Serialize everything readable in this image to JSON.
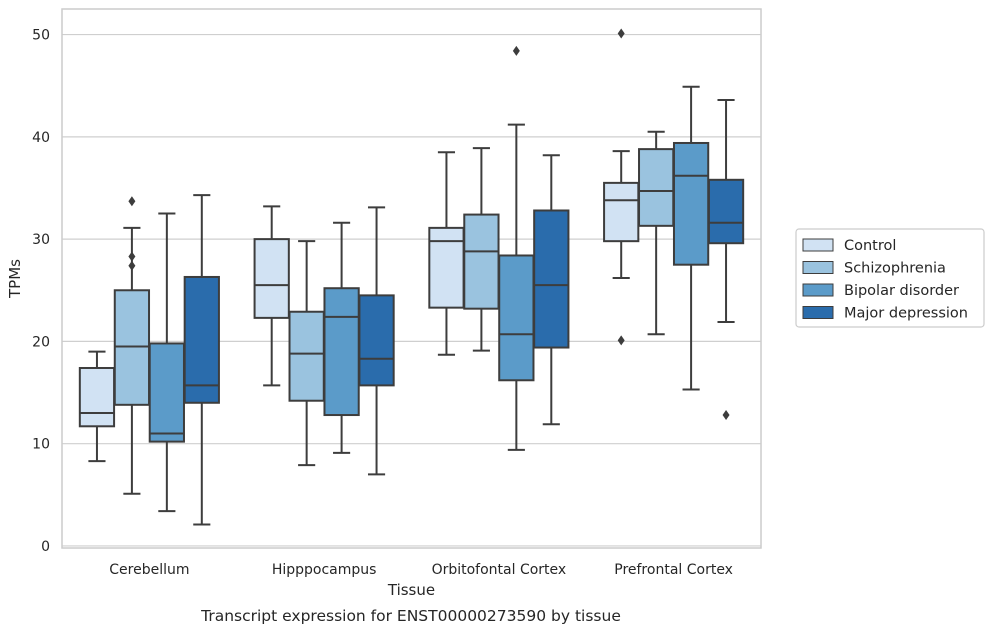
{
  "chart_data": {
    "type": "box",
    "title": "",
    "caption": "Transcript expression for ENST00000273590 by tissue",
    "xlabel": "Tissue",
    "ylabel": "TPMs",
    "ylim": [
      -0.2,
      52.5
    ],
    "yticks": [
      0,
      10,
      20,
      30,
      40,
      50
    ],
    "grid": "horizontal",
    "legend_position": "right",
    "categories": [
      "Cerebellum",
      "Hipppocampus",
      "Orbitofontal Cortex",
      "Prefrontal Cortex"
    ],
    "series": [
      {
        "name": "Control",
        "color": "#d1e2f3",
        "boxes": [
          {
            "whislo": 8.3,
            "q1": 11.7,
            "med": 13.0,
            "q3": 17.4,
            "whishi": 19.0,
            "fliers": []
          },
          {
            "whislo": 15.7,
            "q1": 22.3,
            "med": 25.5,
            "q3": 30.0,
            "whishi": 33.2,
            "fliers": []
          },
          {
            "whislo": 18.7,
            "q1": 23.3,
            "med": 29.8,
            "q3": 31.1,
            "whishi": 38.5,
            "fliers": []
          },
          {
            "whislo": 26.2,
            "q1": 29.8,
            "med": 33.8,
            "q3": 35.5,
            "whishi": 38.6,
            "fliers": [
              20.1,
              50.1
            ]
          }
        ]
      },
      {
        "name": "Schizophrenia",
        "color": "#9ac3df",
        "boxes": [
          {
            "whislo": 5.1,
            "q1": 13.8,
            "med": 19.5,
            "q3": 25.0,
            "whishi": 31.1,
            "fliers": [
              27.4,
              28.3,
              33.7
            ]
          },
          {
            "whislo": 7.9,
            "q1": 14.2,
            "med": 18.8,
            "q3": 22.9,
            "whishi": 29.8,
            "fliers": []
          },
          {
            "whislo": 19.1,
            "q1": 23.2,
            "med": 28.8,
            "q3": 32.4,
            "whishi": 38.9,
            "fliers": []
          },
          {
            "whislo": 20.7,
            "q1": 31.3,
            "med": 34.7,
            "q3": 38.8,
            "whishi": 40.5,
            "fliers": []
          }
        ]
      },
      {
        "name": "Bipolar disorder",
        "color": "#5b9bc9",
        "boxes": [
          {
            "whislo": 3.4,
            "q1": 10.2,
            "med": 11.0,
            "q3": 19.8,
            "whishi": 32.5,
            "fliers": []
          },
          {
            "whislo": 9.1,
            "q1": 12.8,
            "med": 22.4,
            "q3": 25.2,
            "whishi": 31.6,
            "fliers": []
          },
          {
            "whislo": 9.4,
            "q1": 16.2,
            "med": 20.7,
            "q3": 28.4,
            "whishi": 41.2,
            "fliers": [
              48.4
            ]
          },
          {
            "whislo": 15.3,
            "q1": 27.5,
            "med": 36.2,
            "q3": 39.4,
            "whishi": 44.9,
            "fliers": []
          }
        ]
      },
      {
        "name": "Major depression",
        "color": "#2a6cac",
        "boxes": [
          {
            "whislo": 2.1,
            "q1": 14.0,
            "med": 15.7,
            "q3": 26.3,
            "whishi": 34.3,
            "fliers": []
          },
          {
            "whislo": 7.0,
            "q1": 15.7,
            "med": 18.3,
            "q3": 24.5,
            "whishi": 33.1,
            "fliers": []
          },
          {
            "whislo": 11.9,
            "q1": 19.4,
            "med": 25.5,
            "q3": 32.8,
            "whishi": 38.2,
            "fliers": []
          },
          {
            "whislo": 21.9,
            "q1": 29.6,
            "med": 31.6,
            "q3": 35.8,
            "whishi": 43.6,
            "fliers": [
              12.8
            ]
          }
        ]
      }
    ]
  }
}
